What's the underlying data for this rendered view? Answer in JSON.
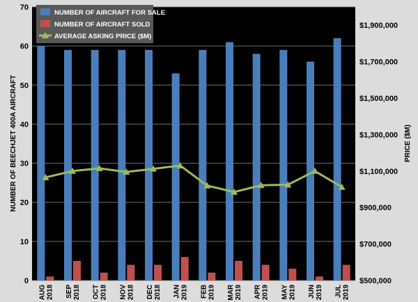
{
  "chart_data": {
    "type": "bar",
    "categories": [
      [
        "AUG",
        "2018"
      ],
      [
        "SEP",
        "2018"
      ],
      [
        "OCT",
        "2018"
      ],
      [
        "NOV",
        "2018"
      ],
      [
        "DEC",
        "2018"
      ],
      [
        "JAN",
        "2019"
      ],
      [
        "FEB",
        "2019"
      ],
      [
        "MAR",
        "2019"
      ],
      [
        "APR",
        "2019"
      ],
      [
        "MAY",
        "2019"
      ],
      [
        "JUN",
        "2019"
      ],
      [
        "JUL",
        "2019"
      ]
    ],
    "series": [
      {
        "name": "NUMBER OF AIRCRAFT FOR SALE",
        "kind": "bar",
        "axis": "left",
        "color": "#4a7ebb",
        "values": [
          60,
          59,
          59,
          59,
          59,
          53,
          59,
          61,
          58,
          59,
          56,
          62
        ]
      },
      {
        "name": "NUMBER OF AIRCRAFT SOLD",
        "kind": "bar",
        "axis": "left",
        "color": "#c0504d",
        "values": [
          1,
          5,
          2,
          4,
          4,
          6,
          2,
          5,
          4,
          3,
          1,
          4
        ]
      },
      {
        "name": "AVERAGE ASKING PRICE ($M)",
        "kind": "line",
        "axis": "right",
        "color": "#9bbb59",
        "values": [
          1065000,
          1100000,
          1115000,
          1095000,
          1112000,
          1130000,
          1020000,
          985000,
          1022000,
          1025000,
          1100000,
          1012000
        ]
      }
    ],
    "y_left": {
      "label": "NUMBER OF BEECHJET 400A AIRCRAFT",
      "range": [
        0,
        70
      ],
      "ticks": [
        "0",
        "10",
        "20",
        "30",
        "40",
        "50",
        "60",
        "70"
      ]
    },
    "y_right": {
      "label": "PRICE ($M)",
      "range": [
        500000,
        2000000
      ],
      "ticks": [
        "$500,000",
        "$700,000",
        "$900,000",
        "$1,100,000",
        "$1,300,000",
        "$1,500,000",
        "$1,700,000",
        "$1,900,000"
      ]
    },
    "legend_position": "top-left",
    "grid": true,
    "colors": {
      "plot_bg": "#000000",
      "page_bg": "#dcdcdc",
      "grid": "#6e6e6e",
      "legend_bg": "#595959",
      "legend_text": "#ffffff"
    }
  }
}
